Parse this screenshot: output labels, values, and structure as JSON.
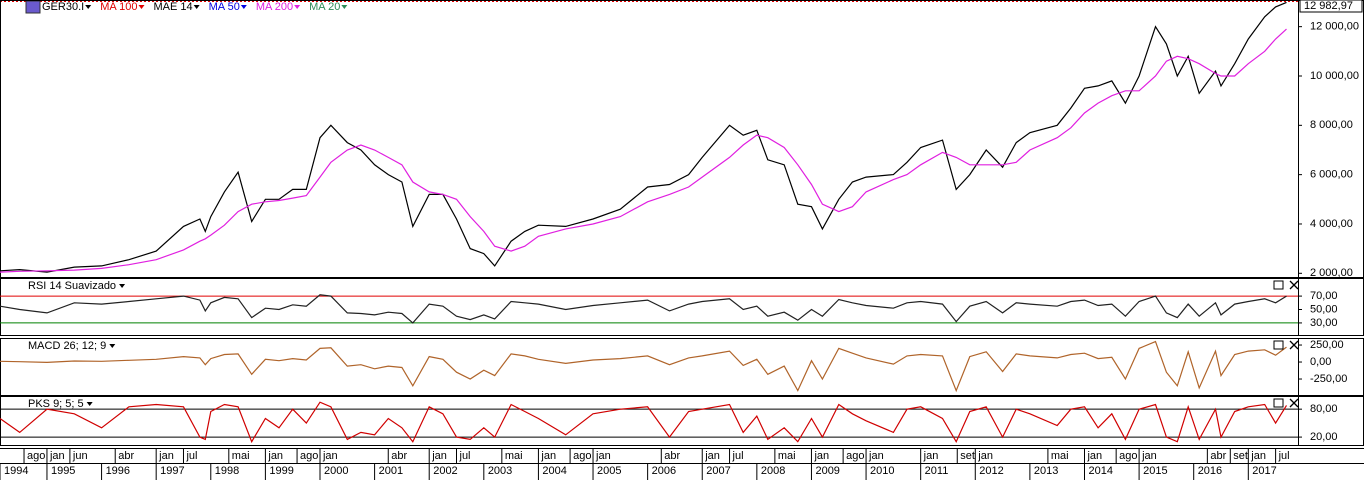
{
  "chart_data": [
    {
      "type": "line",
      "title": "GER30.I",
      "x": [
        1994.14,
        1994.5,
        1995.0,
        1995.5,
        1996.0,
        1996.5,
        1997.0,
        1997.5,
        1997.8,
        1997.9,
        1998.0,
        1998.25,
        1998.5,
        1998.75,
        1999.0,
        1999.25,
        1999.5,
        1999.75,
        2000.0,
        2000.2,
        2000.5,
        2000.75,
        2001.0,
        2001.25,
        2001.5,
        2001.7,
        2002.0,
        2002.25,
        2002.5,
        2002.75,
        2003.0,
        2003.2,
        2003.5,
        2003.75,
        2004.0,
        2004.5,
        2005.0,
        2005.5,
        2006.0,
        2006.4,
        2006.75,
        2007.0,
        2007.5,
        2007.75,
        2008.0,
        2008.2,
        2008.5,
        2008.75,
        2009.0,
        2009.2,
        2009.5,
        2009.75,
        2010.0,
        2010.5,
        2010.75,
        2011.0,
        2011.4,
        2011.65,
        2011.9,
        2012.2,
        2012.5,
        2012.75,
        2013.0,
        2013.5,
        2013.75,
        2014.0,
        2014.25,
        2014.5,
        2014.75,
        2015.0,
        2015.3,
        2015.5,
        2015.7,
        2015.9,
        2016.1,
        2016.4,
        2016.5,
        2016.75,
        2017.0,
        2017.3,
        2017.5,
        2017.7
      ],
      "series": [
        {
          "name": "GER30.I",
          "color": "#000000",
          "values": [
            2100,
            2150,
            2050,
            2250,
            2300,
            2550,
            2900,
            3900,
            4200,
            3700,
            4300,
            5300,
            6100,
            4100,
            5000,
            5000,
            5400,
            5400,
            7500,
            8000,
            7300,
            7000,
            6400,
            6000,
            5700,
            3900,
            5200,
            5200,
            4200,
            3000,
            2800,
            2300,
            3300,
            3700,
            3950,
            3900,
            4200,
            4600,
            5500,
            5600,
            6000,
            6700,
            8000,
            7600,
            7800,
            6600,
            6400,
            4800,
            4700,
            3800,
            5000,
            5700,
            5900,
            6000,
            6500,
            7100,
            7400,
            5400,
            6000,
            7000,
            6300,
            7300,
            7700,
            8000,
            8700,
            9500,
            9600,
            9800,
            8900,
            10000,
            12000,
            11300,
            10000,
            10800,
            9300,
            10200,
            9600,
            10500,
            11500,
            12400,
            12800,
            12982.97
          ]
        },
        {
          "name": "MA 200",
          "color": "#e020e0",
          "values": [
            2050,
            2080,
            2100,
            2130,
            2200,
            2350,
            2550,
            2950,
            3300,
            3400,
            3550,
            3950,
            4500,
            4800,
            4900,
            4950,
            5050,
            5150,
            5900,
            6500,
            7000,
            7200,
            7000,
            6700,
            6400,
            5700,
            5300,
            5200,
            5000,
            4300,
            3700,
            3100,
            2900,
            3100,
            3500,
            3800,
            4000,
            4300,
            4900,
            5200,
            5500,
            5900,
            6700,
            7200,
            7600,
            7500,
            7100,
            6400,
            5600,
            4800,
            4500,
            4700,
            5300,
            5800,
            6000,
            6400,
            6900,
            6700,
            6400,
            6400,
            6400,
            6500,
            7000,
            7500,
            7900,
            8500,
            8900,
            9200,
            9400,
            9400,
            10000,
            10600,
            10800,
            10700,
            10500,
            10100,
            10000,
            10000,
            10500,
            11000,
            11500,
            11900
          ]
        }
      ],
      "indicators": [
        {
          "name": "MA 100",
          "color": "#e00000"
        },
        {
          "name": "MAE 14",
          "color": "#000000"
        },
        {
          "name": "MA 50",
          "color": "#0000e0"
        },
        {
          "name": "MA 20",
          "color": "#2e8b57"
        }
      ],
      "last_value": {
        "value": 12982.97,
        "label": "12 982,97"
      },
      "ylim": [
        1850,
        13000
      ],
      "yticks": [
        {
          "value": 2000,
          "label": "2 000,00"
        },
        {
          "value": 4000,
          "label": "4 000,00"
        },
        {
          "value": 6000,
          "label": "6 000,00"
        },
        {
          "value": 8000,
          "label": "8 000,00"
        },
        {
          "value": 10000,
          "label": "10 000,00"
        },
        {
          "value": 12000,
          "label": "12 000,00"
        }
      ],
      "xlim": [
        1994.14,
        2017.91
      ],
      "xticks": [
        1994,
        1995,
        1996,
        1997,
        1998,
        1999,
        2000,
        2001,
        2002,
        2003,
        2004,
        2005,
        2006,
        2007,
        2008,
        2009,
        2010,
        2011,
        2012,
        2013,
        2014,
        2015,
        2016,
        2017
      ],
      "month_ticks": [
        {
          "value": 1994.58,
          "label": "ago"
        },
        {
          "value": 1995.0,
          "label": "jan"
        },
        {
          "value": 1995.42,
          "label": "jun"
        },
        {
          "value": 1996.25,
          "label": "abr"
        },
        {
          "value": 1997.0,
          "label": "jan"
        },
        {
          "value": 1997.5,
          "label": "jul"
        },
        {
          "value": 1998.33,
          "label": "mai"
        },
        {
          "value": 1999.0,
          "label": "jan"
        },
        {
          "value": 1999.58,
          "label": "ago"
        },
        {
          "value": 2000.0,
          "label": "jan"
        },
        {
          "value": 2001.25,
          "label": "abr"
        },
        {
          "value": 2002.0,
          "label": "jan"
        },
        {
          "value": 2002.5,
          "label": "jul"
        },
        {
          "value": 2003.33,
          "label": "mai"
        },
        {
          "value": 2004.0,
          "label": "jan"
        },
        {
          "value": 2004.58,
          "label": "ago"
        },
        {
          "value": 2005.0,
          "label": "jan"
        },
        {
          "value": 2006.25,
          "label": "abr"
        },
        {
          "value": 2007.0,
          "label": "jan"
        },
        {
          "value": 2007.5,
          "label": "jul"
        },
        {
          "value": 2008.33,
          "label": "mai"
        },
        {
          "value": 2009.0,
          "label": "jan"
        },
        {
          "value": 2009.58,
          "label": "ago"
        },
        {
          "value": 2010.0,
          "label": "jan"
        },
        {
          "value": 2011.0,
          "label": "jan"
        },
        {
          "value": 2011.67,
          "label": "set"
        },
        {
          "value": 2012.0,
          "label": "jan"
        },
        {
          "value": 2013.33,
          "label": "mai"
        },
        {
          "value": 2014.0,
          "label": "jan"
        },
        {
          "value": 2014.58,
          "label": "ago"
        },
        {
          "value": 2015.0,
          "label": "jan"
        },
        {
          "value": 2016.25,
          "label": "abr"
        },
        {
          "value": 2016.67,
          "label": "set"
        },
        {
          "value": 2017.0,
          "label": "jan"
        },
        {
          "value": 2017.5,
          "label": "jul"
        }
      ]
    },
    {
      "type": "line",
      "title": "RSI 14 Suavizado",
      "color": "#222222",
      "values": [
        55,
        50,
        45,
        60,
        58,
        62,
        66,
        70,
        64,
        48,
        60,
        68,
        66,
        38,
        52,
        50,
        57,
        55,
        72,
        70,
        45,
        44,
        42,
        46,
        44,
        30,
        58,
        55,
        40,
        35,
        42,
        36,
        62,
        60,
        58,
        50,
        56,
        60,
        64,
        48,
        58,
        62,
        66,
        50,
        55,
        40,
        46,
        34,
        50,
        40,
        65,
        60,
        56,
        52,
        60,
        62,
        58,
        32,
        55,
        62,
        45,
        60,
        58,
        55,
        62,
        64,
        56,
        58,
        40,
        62,
        70,
        45,
        38,
        58,
        40,
        60,
        42,
        58,
        62,
        66,
        60,
        70
      ],
      "ylim": [
        12,
        94
      ],
      "yticks": [
        {
          "value": 70,
          "label": "70,00"
        },
        {
          "value": 50,
          "label": "50,00"
        },
        {
          "value": 30,
          "label": "30,00"
        }
      ],
      "levels": [
        {
          "value": 70,
          "color": "#e00000"
        },
        {
          "value": 30,
          "color": "#008000"
        }
      ]
    },
    {
      "type": "line",
      "title": "MACD 26; 12; 9",
      "color": "#b0642a",
      "values": [
        10,
        5,
        -5,
        15,
        10,
        25,
        40,
        80,
        60,
        -40,
        50,
        110,
        120,
        -180,
        40,
        20,
        50,
        30,
        200,
        210,
        -60,
        -40,
        -100,
        -60,
        -80,
        -350,
        80,
        40,
        -150,
        -250,
        -120,
        -200,
        120,
        90,
        40,
        -20,
        30,
        50,
        90,
        -40,
        60,
        90,
        160,
        -50,
        40,
        -180,
        -60,
        -420,
        20,
        -250,
        200,
        130,
        60,
        -30,
        90,
        110,
        90,
        -420,
        80,
        150,
        -140,
        120,
        90,
        60,
        110,
        130,
        50,
        70,
        -250,
        200,
        300,
        -150,
        -350,
        150,
        -380,
        160,
        -200,
        110,
        160,
        180,
        100,
        220
      ],
      "ylim": [
        -485,
        324
      ],
      "yticks": [
        {
          "value": 250,
          "label": "250,00"
        },
        {
          "value": 0,
          "label": "0,00"
        },
        {
          "value": -250,
          "label": "-250,00"
        }
      ]
    },
    {
      "type": "line",
      "title": "PKS 9; 5; 5",
      "color": "#d00000",
      "values": [
        60,
        30,
        80,
        70,
        40,
        85,
        90,
        85,
        20,
        15,
        75,
        90,
        85,
        10,
        60,
        40,
        80,
        50,
        95,
        85,
        15,
        30,
        25,
        60,
        40,
        10,
        85,
        70,
        20,
        15,
        40,
        20,
        90,
        75,
        60,
        25,
        70,
        80,
        85,
        20,
        75,
        80,
        90,
        30,
        65,
        15,
        40,
        10,
        60,
        20,
        90,
        70,
        55,
        30,
        80,
        85,
        60,
        10,
        75,
        85,
        20,
        80,
        70,
        45,
        80,
        85,
        40,
        70,
        15,
        80,
        90,
        20,
        10,
        85,
        15,
        80,
        20,
        75,
        85,
        90,
        50,
        88
      ],
      "ylim": [
        3,
        104
      ],
      "yticks": [
        {
          "value": 80,
          "label": "80,00"
        },
        {
          "value": 20,
          "label": "20,00"
        }
      ],
      "levels": [
        {
          "value": 80,
          "color": "#000000"
        },
        {
          "value": 20,
          "color": "#000000"
        }
      ]
    }
  ]
}
